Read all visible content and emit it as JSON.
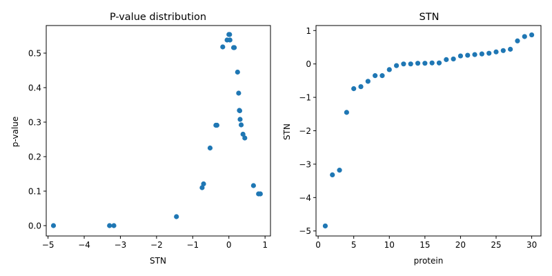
{
  "chart_data": [
    {
      "type": "scatter",
      "title": "P-value distribution",
      "xlabel": "STN",
      "ylabel": "p-value",
      "xlim": [
        -5.05,
        1.15
      ],
      "ylim": [
        -0.03,
        0.58
      ],
      "xticks": [
        -5,
        -4,
        -3,
        -2,
        -1,
        0,
        1
      ],
      "xtick_labels": [
        "−5",
        "−4",
        "−3",
        "−2",
        "−1",
        "0",
        "1"
      ],
      "yticks": [
        0.0,
        0.1,
        0.2,
        0.3,
        0.4,
        0.5
      ],
      "ytick_labels": [
        "0.0",
        "0.1",
        "0.2",
        "0.3",
        "0.4",
        "0.5"
      ],
      "grid": false,
      "color": "#1f77b4",
      "points": [
        {
          "x": -4.85,
          "y": 0.0
        },
        {
          "x": -3.3,
          "y": 0.0
        },
        {
          "x": -3.18,
          "y": 0.0
        },
        {
          "x": -1.45,
          "y": 0.026
        },
        {
          "x": -0.74,
          "y": 0.11
        },
        {
          "x": -0.7,
          "y": 0.121
        },
        {
          "x": -0.52,
          "y": 0.225
        },
        {
          "x": -0.36,
          "y": 0.291
        },
        {
          "x": -0.33,
          "y": 0.291
        },
        {
          "x": -0.17,
          "y": 0.518
        },
        {
          "x": -0.05,
          "y": 0.538
        },
        {
          "x": 0.0,
          "y": 0.554
        },
        {
          "x": 0.02,
          "y": 0.554
        },
        {
          "x": 0.03,
          "y": 0.538
        },
        {
          "x": 0.13,
          "y": 0.516
        },
        {
          "x": 0.15,
          "y": 0.516
        },
        {
          "x": 0.24,
          "y": 0.445
        },
        {
          "x": 0.27,
          "y": 0.384
        },
        {
          "x": 0.29,
          "y": 0.334
        },
        {
          "x": 0.3,
          "y": 0.333
        },
        {
          "x": 0.31,
          "y": 0.308
        },
        {
          "x": 0.34,
          "y": 0.292
        },
        {
          "x": 0.39,
          "y": 0.265
        },
        {
          "x": 0.44,
          "y": 0.254
        },
        {
          "x": 0.68,
          "y": 0.116
        },
        {
          "x": 0.82,
          "y": 0.092
        },
        {
          "x": 0.87,
          "y": 0.092
        }
      ]
    },
    {
      "type": "scatter",
      "title": "STN",
      "xlabel": "protein",
      "ylabel": "STN",
      "xlim": [
        -0.3,
        31.3
      ],
      "ylim": [
        -5.15,
        1.15
      ],
      "xticks": [
        0,
        5,
        10,
        15,
        20,
        25,
        30
      ],
      "xtick_labels": [
        "0",
        "5",
        "10",
        "15",
        "20",
        "25",
        "30"
      ],
      "yticks": [
        -5,
        -4,
        -3,
        -2,
        -1,
        0,
        1
      ],
      "ytick_labels": [
        "−5",
        "−4",
        "−3",
        "−2",
        "−1",
        "0",
        "1"
      ],
      "grid": false,
      "color": "#1f77b4",
      "points": [
        {
          "x": 1,
          "y": -4.85
        },
        {
          "x": 2,
          "y": -3.32
        },
        {
          "x": 3,
          "y": -3.18
        },
        {
          "x": 4,
          "y": -1.45
        },
        {
          "x": 5,
          "y": -0.74
        },
        {
          "x": 6,
          "y": -0.68
        },
        {
          "x": 7,
          "y": -0.52
        },
        {
          "x": 8,
          "y": -0.35
        },
        {
          "x": 9,
          "y": -0.35
        },
        {
          "x": 10,
          "y": -0.17
        },
        {
          "x": 11,
          "y": -0.05
        },
        {
          "x": 12,
          "y": 0.0
        },
        {
          "x": 13,
          "y": 0.0
        },
        {
          "x": 14,
          "y": 0.02
        },
        {
          "x": 15,
          "y": 0.02
        },
        {
          "x": 16,
          "y": 0.03
        },
        {
          "x": 17,
          "y": 0.03
        },
        {
          "x": 18,
          "y": 0.13
        },
        {
          "x": 19,
          "y": 0.15
        },
        {
          "x": 20,
          "y": 0.24
        },
        {
          "x": 21,
          "y": 0.26
        },
        {
          "x": 22,
          "y": 0.28
        },
        {
          "x": 23,
          "y": 0.3
        },
        {
          "x": 24,
          "y": 0.32
        },
        {
          "x": 25,
          "y": 0.36
        },
        {
          "x": 26,
          "y": 0.4
        },
        {
          "x": 27,
          "y": 0.44
        },
        {
          "x": 28,
          "y": 0.69
        },
        {
          "x": 29,
          "y": 0.82
        },
        {
          "x": 30,
          "y": 0.87
        }
      ]
    }
  ]
}
